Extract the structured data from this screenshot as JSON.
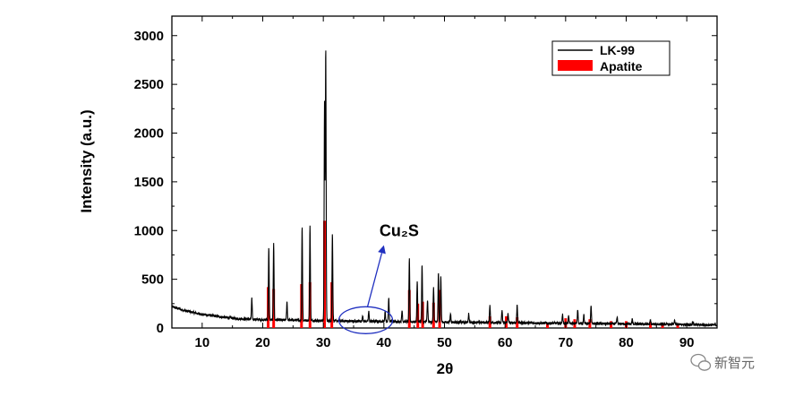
{
  "chart_data": {
    "type": "line",
    "title": "",
    "xlabel": "2θ",
    "ylabel": "Intensity (a.u.)",
    "xlim": [
      5,
      95
    ],
    "ylim": [
      0,
      3200
    ],
    "xticks": [
      10,
      20,
      30,
      40,
      50,
      60,
      70,
      80,
      90
    ],
    "yticks": [
      0,
      500,
      1000,
      1500,
      2000,
      2500,
      3000
    ],
    "grid": false,
    "legend_position": "top-right",
    "series": [
      {
        "name": "LK-99",
        "color": "#000000",
        "style": "line",
        "baseline": [
          [
            5,
            220
          ],
          [
            7,
            180
          ],
          [
            10,
            140
          ],
          [
            13,
            115
          ],
          [
            16,
            95
          ],
          [
            20,
            85
          ],
          [
            25,
            80
          ],
          [
            30,
            75
          ],
          [
            35,
            70
          ],
          [
            40,
            68
          ],
          [
            50,
            60
          ],
          [
            60,
            55
          ],
          [
            70,
            48
          ],
          [
            80,
            42
          ],
          [
            90,
            35
          ],
          [
            95,
            30
          ]
        ],
        "peaks": [
          [
            18.2,
            300
          ],
          [
            21.0,
            820
          ],
          [
            21.8,
            880
          ],
          [
            24.0,
            270
          ],
          [
            26.5,
            1050
          ],
          [
            27.8,
            1050
          ],
          [
            30.2,
            2300
          ],
          [
            30.4,
            2860
          ],
          [
            31.5,
            970
          ],
          [
            36.5,
            130
          ],
          [
            37.5,
            170
          ],
          [
            40.2,
            170
          ],
          [
            40.8,
            310
          ],
          [
            43.0,
            180
          ],
          [
            44.2,
            710
          ],
          [
            45.5,
            480
          ],
          [
            46.3,
            650
          ],
          [
            47.2,
            290
          ],
          [
            48.2,
            420
          ],
          [
            49.0,
            560
          ],
          [
            49.4,
            530
          ],
          [
            51.0,
            150
          ],
          [
            54.0,
            150
          ],
          [
            57.5,
            240
          ],
          [
            59.5,
            180
          ],
          [
            60.5,
            150
          ],
          [
            62.0,
            240
          ],
          [
            69.5,
            140
          ],
          [
            70.5,
            120
          ],
          [
            72.0,
            190
          ],
          [
            73.0,
            140
          ],
          [
            74.2,
            230
          ],
          [
            78.5,
            110
          ],
          [
            81.0,
            90
          ],
          [
            84.0,
            80
          ],
          [
            88.0,
            80
          ],
          [
            91.0,
            70
          ]
        ]
      },
      {
        "name": "Apatite",
        "color": "#ff0000",
        "style": "bar",
        "peaks": [
          [
            20.9,
            420
          ],
          [
            21.8,
            400
          ],
          [
            26.4,
            450
          ],
          [
            27.8,
            470
          ],
          [
            30.2,
            1100
          ],
          [
            31.4,
            470
          ],
          [
            44.2,
            390
          ],
          [
            45.6,
            250
          ],
          [
            46.4,
            270
          ],
          [
            48.2,
            260
          ],
          [
            49.2,
            390
          ],
          [
            57.5,
            120
          ],
          [
            60.2,
            120
          ],
          [
            62.0,
            110
          ],
          [
            67.0,
            50
          ],
          [
            70.0,
            100
          ],
          [
            71.5,
            90
          ],
          [
            74.0,
            90
          ],
          [
            77.5,
            70
          ],
          [
            80.0,
            70
          ],
          [
            84.0,
            60
          ],
          [
            86.0,
            50
          ],
          [
            88.5,
            40
          ]
        ]
      }
    ],
    "annotations": [
      {
        "text": "Cu₂S",
        "ellipse_center": [
          37,
          80
        ],
        "arrow_tip": [
          40,
          850
        ]
      }
    ]
  },
  "watermark": {
    "text": "新智元",
    "icon": "wechat-icon"
  }
}
